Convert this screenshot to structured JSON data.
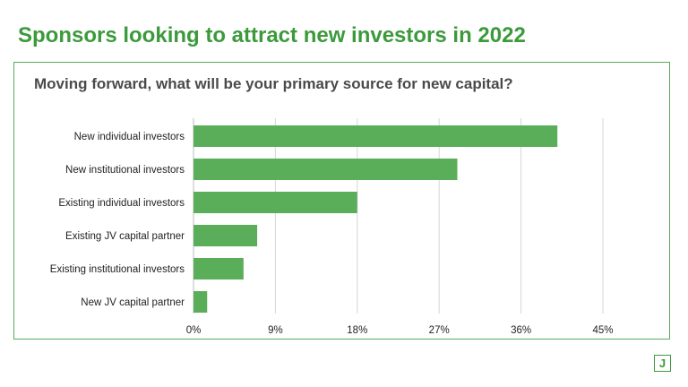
{
  "page": {
    "title": "Sponsors looking to attract new investors in 2022"
  },
  "logo": {
    "letter": "J"
  },
  "colors": {
    "accent": "#3c9a3c",
    "bar": "#5aae5a",
    "frame": "#5aaa58",
    "text": "#222222",
    "grid": "#d6d6d6"
  },
  "chart_data": {
    "type": "bar",
    "orientation": "horizontal",
    "title": "Moving forward, what will be your primary source for new capital?",
    "categories": [
      "New individual investors",
      "New institutional investors",
      "Existing individual investors",
      "Existing JV capital partner",
      "Existing institutional investors",
      "New JV capital partner"
    ],
    "values": [
      40,
      29,
      18,
      7,
      5.5,
      1.5
    ],
    "xlim": [
      0,
      45
    ],
    "xticks": [
      0,
      9,
      18,
      27,
      36,
      45
    ],
    "xtick_labels": [
      "0%",
      "9%",
      "18%",
      "27%",
      "36%",
      "45%"
    ],
    "grid": true
  }
}
